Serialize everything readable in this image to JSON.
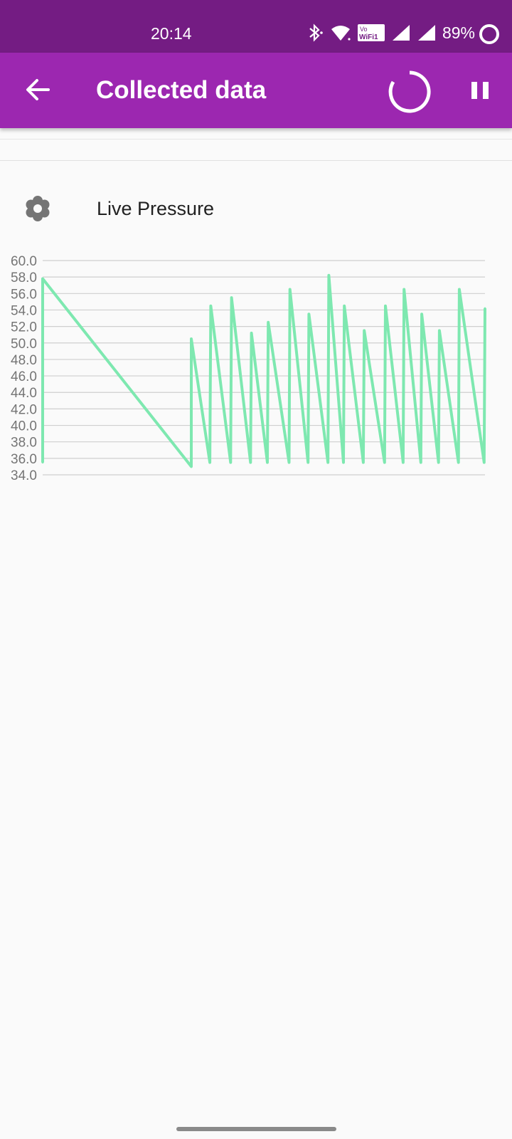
{
  "status_bar": {
    "time": "20:14",
    "battery": "89%",
    "network_label": "Vo WiFi 1",
    "icons": [
      "bluetooth-icon",
      "wifi-icon",
      "vowifi-icon",
      "signal-icon",
      "signal-icon",
      "battery-saver-icon"
    ]
  },
  "app_bar": {
    "title": "Collected data",
    "background": "#9c27b0",
    "back_icon": "arrow-back-icon",
    "progress_icon": "loading-spinner-icon",
    "pause_icon": "pause-icon"
  },
  "sensor": {
    "label": "Live Pressure",
    "icon": "flower-icon"
  },
  "chart_data": {
    "type": "line",
    "title": "",
    "xlabel": "",
    "ylabel": "",
    "ylim": [
      34,
      60
    ],
    "y_ticks": [
      "60.0",
      "58.0",
      "56.0",
      "54.0",
      "52.0",
      "50.0",
      "48.0",
      "46.0",
      "44.0",
      "42.0",
      "40.0",
      "38.0",
      "36.0",
      "34.0"
    ],
    "grid": true,
    "line_color": "#7ee8b0",
    "series": [
      {
        "values": [
          35.5,
          57.8,
          35.0,
          50.5,
          35.5,
          54.5,
          35.5,
          55.5,
          35.5,
          51.2,
          35.5,
          52.5,
          35.5,
          56.5,
          35.5,
          53.5,
          35.5,
          58.2,
          35.5,
          54.5,
          35.5,
          51.5,
          35.5,
          54.5,
          35.5,
          56.5,
          35.5,
          53.5,
          35.5,
          51.5,
          35.5,
          56.5,
          35.5,
          54.2
        ]
      }
    ]
  }
}
